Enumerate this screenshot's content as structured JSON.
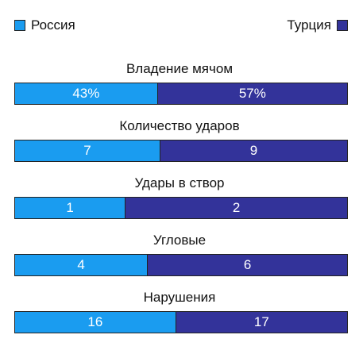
{
  "legend": {
    "team1": {
      "label": "Россия",
      "color": "#1a9cf0"
    },
    "team2": {
      "label": "Турция",
      "color": "#33339a"
    }
  },
  "chart_data": {
    "type": "bar",
    "categories": [
      "Владение мячом",
      "Количество ударов",
      "Удары в створ",
      "Угловые",
      "Нарушения"
    ],
    "series": [
      {
        "name": "Россия",
        "values": [
          43,
          7,
          1,
          4,
          16
        ],
        "labels": [
          "43%",
          "7",
          "1",
          "4",
          "16"
        ]
      },
      {
        "name": "Турция",
        "values": [
          57,
          9,
          2,
          6,
          17
        ],
        "labels": [
          "57%",
          "9",
          "2",
          "6",
          "17"
        ]
      }
    ],
    "stacked": "100-percent-horizontal",
    "legend_position": "top"
  }
}
